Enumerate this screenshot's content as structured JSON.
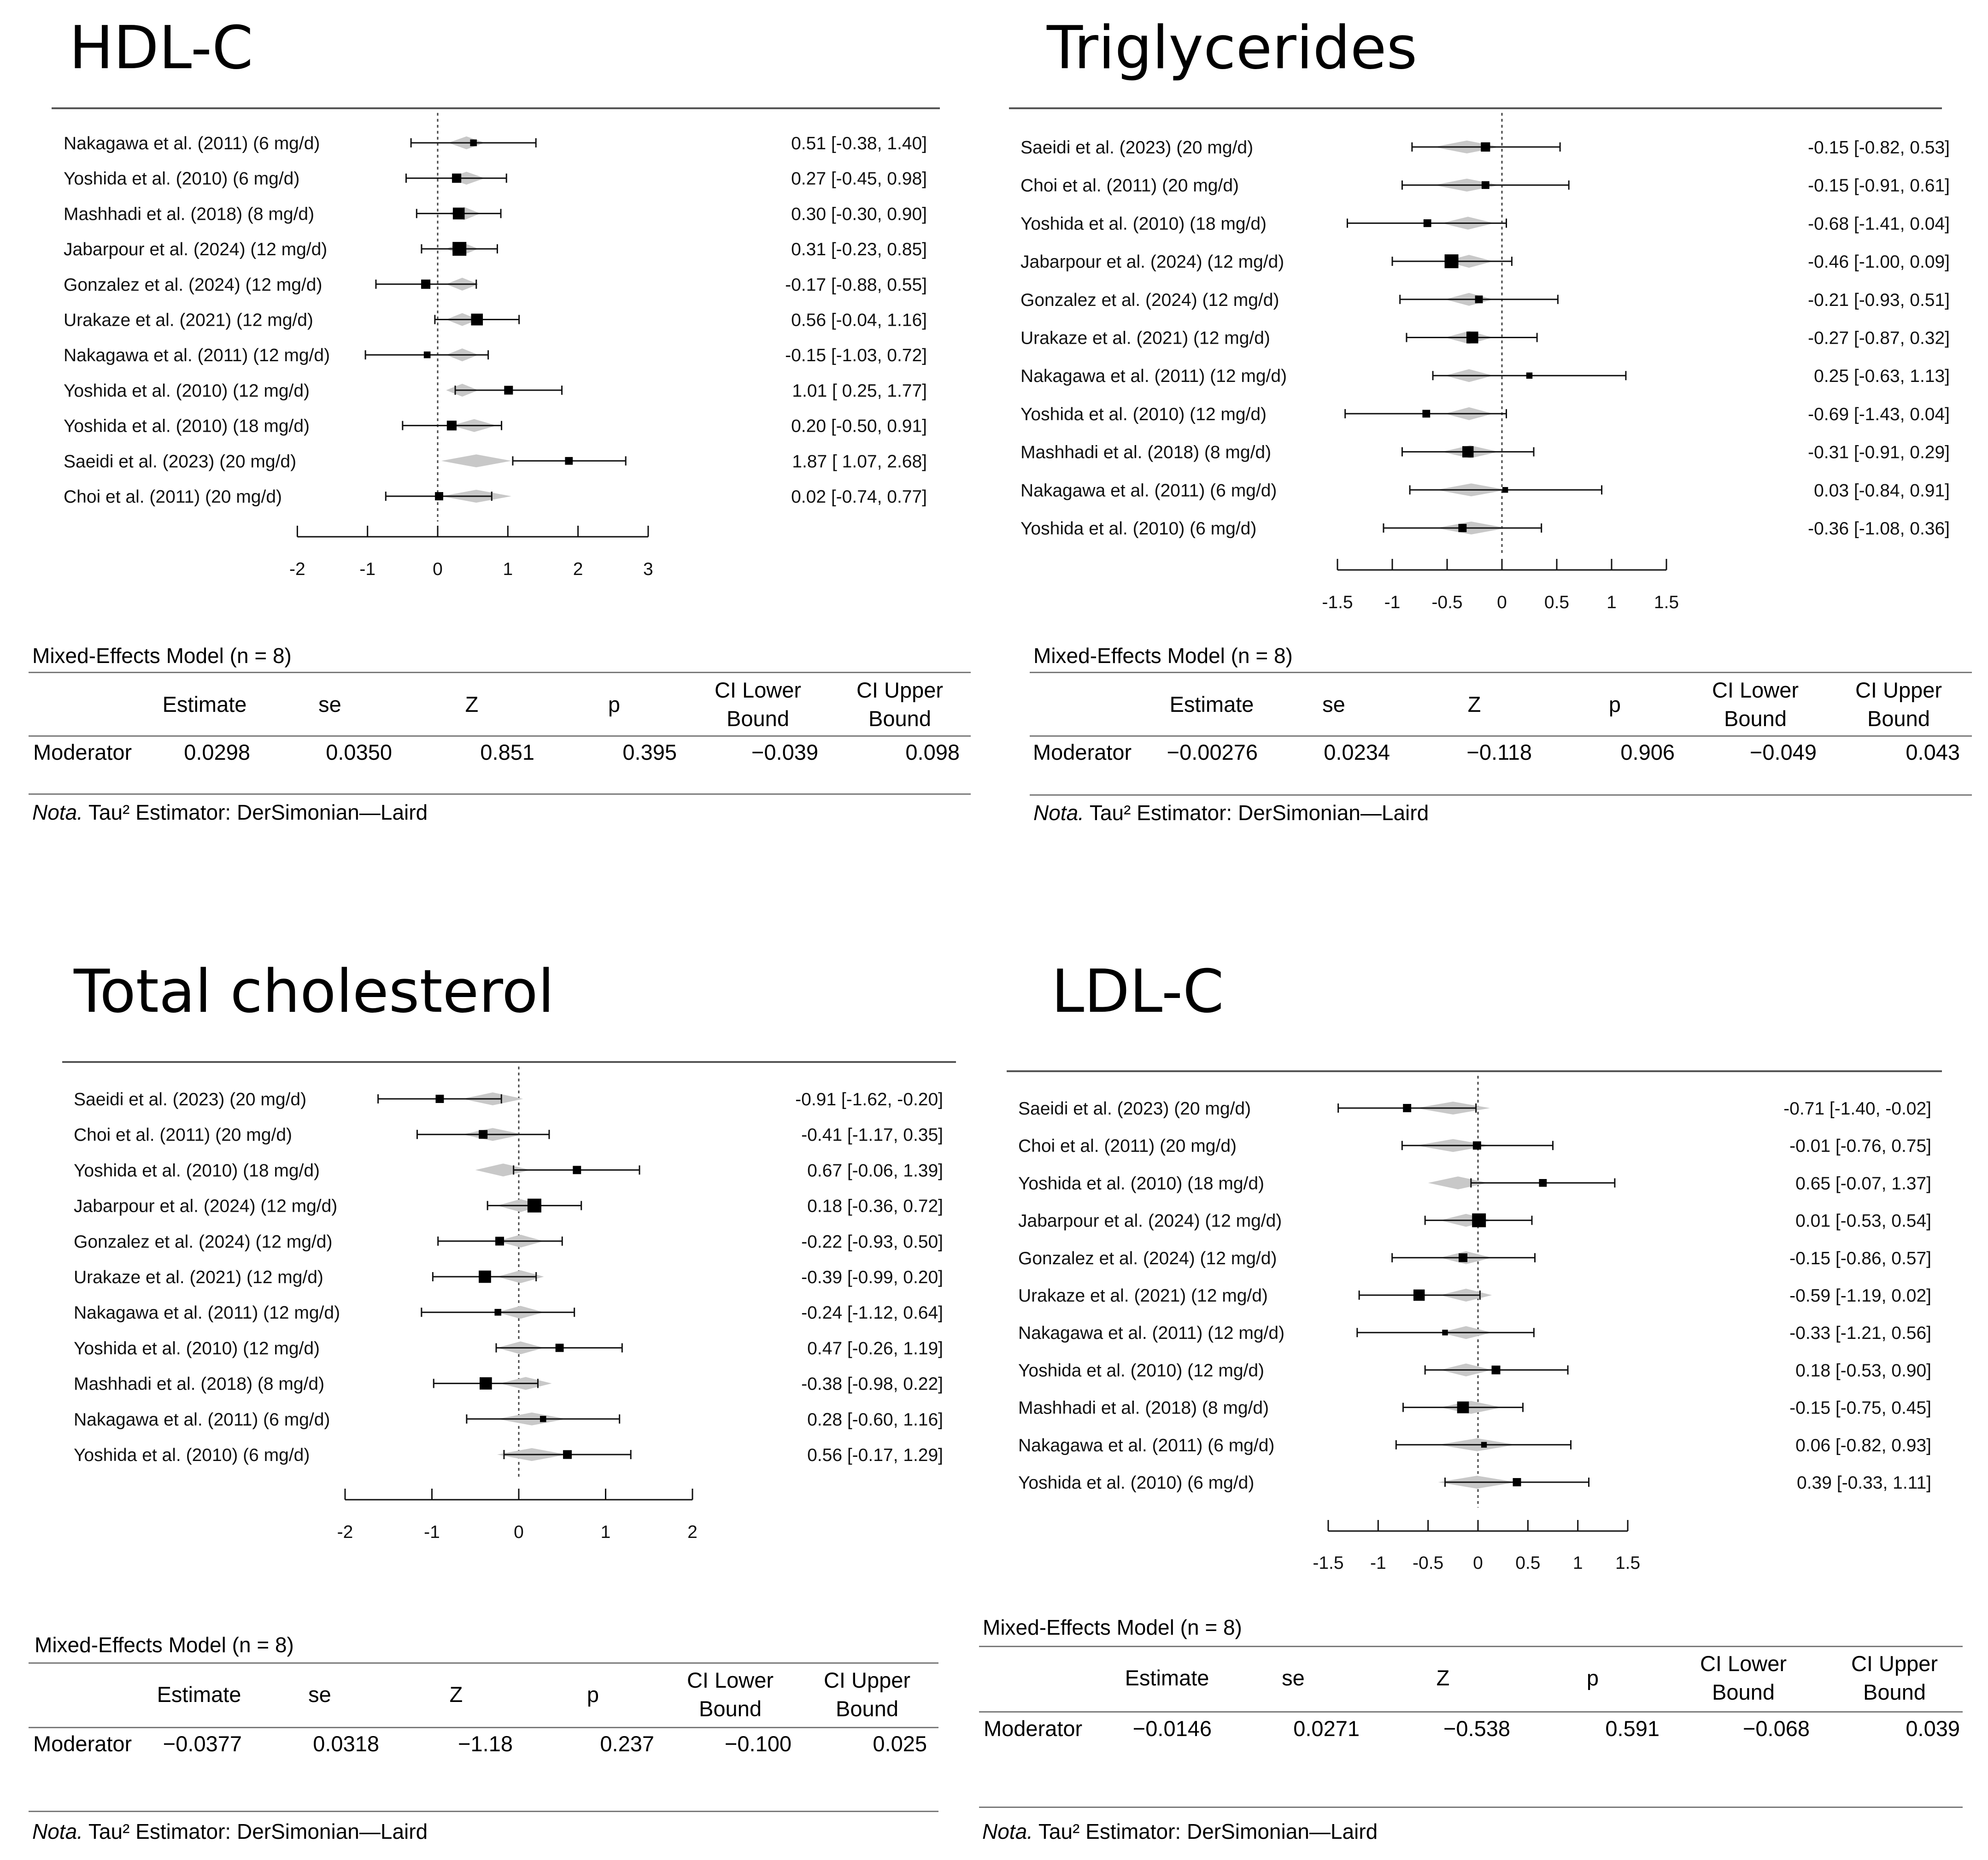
{
  "charts": [
    {
      "title": "HDL-C",
      "studies": [
        {
          "label": "Nakagawa et al. (2011) (6 mg/d)",
          "ci_text": "0.51 [-0.38, 1.40]"
        },
        {
          "label": "Yoshida et al. (2010) (6 mg/d)",
          "ci_text": "0.27 [-0.45, 0.98]"
        },
        {
          "label": "Mashhadi et al. (2018) (8 mg/d)",
          "ci_text": "0.30 [-0.30, 0.90]"
        },
        {
          "label": "Jabarpour et al. (2024) (12 mg/d)",
          "ci_text": "0.31 [-0.23, 0.85]"
        },
        {
          "label": "Gonzalez et al. (2024) (12 mg/d)",
          "ci_text": "-0.17 [-0.88, 0.55]"
        },
        {
          "label": "Urakaze et al. (2021) (12 mg/d)",
          "ci_text": "0.56 [-0.04, 1.16]"
        },
        {
          "label": "Nakagawa et al. (2011) (12 mg/d)",
          "ci_text": "-0.15 [-1.03, 0.72]"
        },
        {
          "label": "Yoshida et al. (2010) (12 mg/d)",
          "ci_text": "1.01 [ 0.25, 1.77]"
        },
        {
          "label": "Yoshida et al. (2010) (18 mg/d)",
          "ci_text": "0.20 [-0.50, 0.91]"
        },
        {
          "label": "Saeidi et al. (2023) (20 mg/d)",
          "ci_text": "1.87 [ 1.07, 2.68]"
        },
        {
          "label": "Choi et al. (2011) (20 mg/d)",
          "ci_text": "0.02 [-0.74, 0.77]"
        }
      ],
      "axis_ticks": [
        "-2",
        "-1",
        "0",
        "1",
        "2",
        "3"
      ],
      "model": {
        "title": "Mixed-Effects Model (n = 8)",
        "headers": {
          "estimate": "Estimate",
          "se": "se",
          "z": "Z",
          "p": "p",
          "ci_lower_1": "CI Lower",
          "ci_lower_2": "Bound",
          "ci_upper_1": "CI Upper",
          "ci_upper_2": "Bound"
        },
        "row": {
          "label": "Moderator",
          "estimate": "0.0298",
          "se": "0.0350",
          "z": "0.851",
          "p": "0.395",
          "ci_lower": "−0.039",
          "ci_upper": "0.098"
        },
        "note_label": "Nota.",
        "note_text": "Tau² Estimator: DerSimonian—Laird"
      }
    },
    {
      "title": "Triglycerides",
      "studies": [
        {
          "label": "Saeidi et al. (2023) (20 mg/d)",
          "ci_text": "-0.15 [-0.82, 0.53]"
        },
        {
          "label": "Choi et al. (2011) (20 mg/d)",
          "ci_text": "-0.15 [-0.91, 0.61]"
        },
        {
          "label": "Yoshida et al. (2010) (18 mg/d)",
          "ci_text": "-0.68 [-1.41, 0.04]"
        },
        {
          "label": "Jabarpour et al. (2024) (12 mg/d)",
          "ci_text": "-0.46 [-1.00, 0.09]"
        },
        {
          "label": "Gonzalez et al. (2024) (12 mg/d)",
          "ci_text": "-0.21 [-0.93, 0.51]"
        },
        {
          "label": "Urakaze et al. (2021) (12 mg/d)",
          "ci_text": "-0.27 [-0.87, 0.32]"
        },
        {
          "label": "Nakagawa et al. (2011) (12 mg/d)",
          "ci_text": "0.25 [-0.63, 1.13]"
        },
        {
          "label": "Yoshida et al. (2010) (12 mg/d)",
          "ci_text": "-0.69 [-1.43, 0.04]"
        },
        {
          "label": "Mashhadi et al. (2018) (8 mg/d)",
          "ci_text": "-0.31 [-0.91, 0.29]"
        },
        {
          "label": "Nakagawa et al. (2011) (6 mg/d)",
          "ci_text": "0.03 [-0.84, 0.91]"
        },
        {
          "label": "Yoshida et al. (2010) (6 mg/d)",
          "ci_text": "-0.36 [-1.08, 0.36]"
        }
      ],
      "axis_ticks": [
        "-1.5",
        "-1",
        "-0.5",
        "0",
        "0.5",
        "1",
        "1.5"
      ],
      "model": {
        "title": "Mixed-Effects Model (n = 8)",
        "headers": {
          "estimate": "Estimate",
          "se": "se",
          "z": "Z",
          "p": "p",
          "ci_lower_1": "CI Lower",
          "ci_lower_2": "Bound",
          "ci_upper_1": "CI Upper",
          "ci_upper_2": "Bound"
        },
        "row": {
          "label": "Moderator",
          "estimate": "−0.00276",
          "se": "0.0234",
          "z": "−0.118",
          "p": "0.906",
          "ci_lower": "−0.049",
          "ci_upper": "0.043"
        },
        "note_label": "Nota.",
        "note_text": "Tau² Estimator: DerSimonian—Laird"
      }
    },
    {
      "title": "Total cholesterol",
      "studies": [
        {
          "label": "Saeidi et al. (2023) (20 mg/d)",
          "ci_text": "-0.91 [-1.62, -0.20]"
        },
        {
          "label": "Choi et al. (2011) (20 mg/d)",
          "ci_text": "-0.41 [-1.17, 0.35]"
        },
        {
          "label": "Yoshida et al. (2010) (18 mg/d)",
          "ci_text": "0.67 [-0.06, 1.39]"
        },
        {
          "label": "Jabarpour et al. (2024) (12 mg/d)",
          "ci_text": "0.18 [-0.36, 0.72]"
        },
        {
          "label": "Gonzalez et al. (2024) (12 mg/d)",
          "ci_text": "-0.22 [-0.93, 0.50]"
        },
        {
          "label": "Urakaze et al. (2021) (12 mg/d)",
          "ci_text": "-0.39 [-0.99, 0.20]"
        },
        {
          "label": "Nakagawa et al. (2011) (12 mg/d)",
          "ci_text": "-0.24 [-1.12, 0.64]"
        },
        {
          "label": "Yoshida et al. (2010) (12 mg/d)",
          "ci_text": "0.47 [-0.26, 1.19]"
        },
        {
          "label": "Mashhadi et al. (2018) (8 mg/d)",
          "ci_text": "-0.38 [-0.98, 0.22]"
        },
        {
          "label": "Nakagawa et al. (2011) (6 mg/d)",
          "ci_text": "0.28 [-0.60, 1.16]"
        },
        {
          "label": "Yoshida et al. (2010) (6 mg/d)",
          "ci_text": "0.56 [-0.17, 1.29]"
        }
      ],
      "axis_ticks": [
        "-2",
        "-1",
        "0",
        "1",
        "2"
      ],
      "model": {
        "title": "Mixed-Effects Model (n = 8)",
        "headers": {
          "estimate": "Estimate",
          "se": "se",
          "z": "Z",
          "p": "p",
          "ci_lower_1": "CI Lower",
          "ci_lower_2": "Bound",
          "ci_upper_1": "CI Upper",
          "ci_upper_2": "Bound"
        },
        "row": {
          "label": "Moderator",
          "estimate": "−0.0377",
          "se": "0.0318",
          "z": "−1.18",
          "p": "0.237",
          "ci_lower": "−0.100",
          "ci_upper": "0.025"
        },
        "note_label": "Nota.",
        "note_text": "Tau² Estimator: DerSimonian—Laird"
      }
    },
    {
      "title": "LDL-C",
      "studies": [
        {
          "label": "Saeidi et al. (2023) (20 mg/d)",
          "ci_text": "-0.71 [-1.40, -0.02]"
        },
        {
          "label": "Choi et al. (2011) (20 mg/d)",
          "ci_text": "-0.01 [-0.76, 0.75]"
        },
        {
          "label": "Yoshida et al. (2010) (18 mg/d)",
          "ci_text": "0.65 [-0.07, 1.37]"
        },
        {
          "label": "Jabarpour et al. (2024) (12 mg/d)",
          "ci_text": "0.01 [-0.53, 0.54]"
        },
        {
          "label": "Gonzalez et al. (2024) (12 mg/d)",
          "ci_text": "-0.15 [-0.86, 0.57]"
        },
        {
          "label": "Urakaze et al. (2021) (12 mg/d)",
          "ci_text": "-0.59 [-1.19, 0.02]"
        },
        {
          "label": "Nakagawa et al. (2011) (12 mg/d)",
          "ci_text": "-0.33 [-1.21, 0.56]"
        },
        {
          "label": "Yoshida et al. (2010) (12 mg/d)",
          "ci_text": "0.18 [-0.53, 0.90]"
        },
        {
          "label": "Mashhadi et al. (2018) (8 mg/d)",
          "ci_text": "-0.15 [-0.75, 0.45]"
        },
        {
          "label": "Nakagawa et al. (2011) (6 mg/d)",
          "ci_text": "0.06 [-0.82, 0.93]"
        },
        {
          "label": "Yoshida et al. (2010) (6 mg/d)",
          "ci_text": "0.39 [-0.33, 1.11]"
        }
      ],
      "axis_ticks": [
        "-1.5",
        "-1",
        "-0.5",
        "0",
        "0.5",
        "1",
        "1.5"
      ],
      "model": {
        "title": "Mixed-Effects Model (n = 8)",
        "headers": {
          "estimate": "Estimate",
          "se": "se",
          "z": "Z",
          "p": "p",
          "ci_lower_1": "CI Lower",
          "ci_lower_2": "Bound",
          "ci_upper_1": "CI Upper",
          "ci_upper_2": "Bound"
        },
        "row": {
          "label": "Moderator",
          "estimate": "−0.0146",
          "se": "0.0271",
          "z": "−0.538",
          "p": "0.591",
          "ci_lower": "−0.068",
          "ci_upper": "0.039"
        },
        "note_label": "Nota.",
        "note_text": "Tau² Estimator: DerSimonian—Laird"
      }
    }
  ],
  "chart_data": [
    {
      "type": "forest",
      "title": "HDL-C",
      "xlim": [
        -2,
        3
      ],
      "xticks": [
        -2,
        -1,
        0,
        1,
        2,
        3
      ],
      "reference_line": 0,
      "studies": [
        {
          "estimate": 0.51,
          "ci_lower": -0.38,
          "ci_upper": 1.4,
          "weight": 0.3
        },
        {
          "estimate": 0.27,
          "ci_lower": -0.45,
          "ci_upper": 0.98,
          "weight": 0.55
        },
        {
          "estimate": 0.3,
          "ci_lower": -0.3,
          "ci_upper": 0.9,
          "weight": 0.8
        },
        {
          "estimate": 0.31,
          "ci_lower": -0.23,
          "ci_upper": 0.85,
          "weight": 1.0
        },
        {
          "estimate": -0.17,
          "ci_lower": -0.88,
          "ci_upper": 0.55,
          "weight": 0.55
        },
        {
          "estimate": 0.56,
          "ci_lower": -0.04,
          "ci_upper": 1.16,
          "weight": 0.8
        },
        {
          "estimate": -0.15,
          "ci_lower": -1.03,
          "ci_upper": 0.72,
          "weight": 0.3
        },
        {
          "estimate": 1.01,
          "ci_lower": 0.25,
          "ci_upper": 1.77,
          "weight": 0.5
        },
        {
          "estimate": 0.2,
          "ci_lower": -0.5,
          "ci_upper": 0.91,
          "weight": 0.6
        },
        {
          "estimate": 1.87,
          "ci_lower": 1.07,
          "ci_upper": 2.68,
          "weight": 0.4
        },
        {
          "estimate": 0.02,
          "ci_lower": -0.74,
          "ci_upper": 0.77,
          "weight": 0.45
        }
      ],
      "predicted": [
        {
          "estimate": 0.41,
          "lower": 0.15,
          "upper": 0.67
        },
        {
          "estimate": 0.41,
          "lower": 0.15,
          "upper": 0.67
        },
        {
          "estimate": 0.38,
          "lower": 0.15,
          "upper": 0.61
        },
        {
          "estimate": 0.35,
          "lower": 0.12,
          "upper": 0.58
        },
        {
          "estimate": 0.35,
          "lower": 0.12,
          "upper": 0.58
        },
        {
          "estimate": 0.35,
          "lower": 0.12,
          "upper": 0.58
        },
        {
          "estimate": 0.35,
          "lower": 0.12,
          "upper": 0.58
        },
        {
          "estimate": 0.35,
          "lower": 0.12,
          "upper": 0.58
        },
        {
          "estimate": 0.52,
          "lower": 0.2,
          "upper": 0.84
        },
        {
          "estimate": 0.55,
          "lower": 0.05,
          "upper": 1.05
        },
        {
          "estimate": 0.55,
          "lower": 0.05,
          "upper": 1.05
        }
      ]
    },
    {
      "type": "forest",
      "title": "Triglycerides",
      "xlim": [
        -1.5,
        1.5
      ],
      "xticks": [
        -1.5,
        -1,
        -0.5,
        0,
        0.5,
        1,
        1.5
      ],
      "reference_line": 0,
      "studies": [
        {
          "estimate": -0.15,
          "ci_lower": -0.82,
          "ci_upper": 0.53,
          "weight": 0.55
        },
        {
          "estimate": -0.15,
          "ci_lower": -0.91,
          "ci_upper": 0.61,
          "weight": 0.4
        },
        {
          "estimate": -0.68,
          "ci_lower": -1.41,
          "ci_upper": 0.04,
          "weight": 0.4
        },
        {
          "estimate": -0.46,
          "ci_lower": -1.0,
          "ci_upper": 0.09,
          "weight": 1.0
        },
        {
          "estimate": -0.21,
          "ci_lower": -0.93,
          "ci_upper": 0.51,
          "weight": 0.4
        },
        {
          "estimate": -0.27,
          "ci_lower": -0.87,
          "ci_upper": 0.32,
          "weight": 0.8
        },
        {
          "estimate": 0.25,
          "ci_lower": -0.63,
          "ci_upper": 1.13,
          "weight": 0.25
        },
        {
          "estimate": -0.69,
          "ci_lower": -1.43,
          "ci_upper": 0.04,
          "weight": 0.4
        },
        {
          "estimate": -0.31,
          "ci_lower": -0.91,
          "ci_upper": 0.29,
          "weight": 0.75
        },
        {
          "estimate": 0.03,
          "ci_lower": -0.84,
          "ci_upper": 0.91,
          "weight": 0.2
        },
        {
          "estimate": -0.36,
          "ci_lower": -1.08,
          "ci_upper": 0.36,
          "weight": 0.45
        }
      ],
      "predicted": [
        {
          "estimate": -0.32,
          "lower": -0.62,
          "upper": -0.02
        },
        {
          "estimate": -0.32,
          "lower": -0.62,
          "upper": -0.02
        },
        {
          "estimate": -0.31,
          "lower": -0.55,
          "upper": -0.07
        },
        {
          "estimate": -0.3,
          "lower": -0.52,
          "upper": -0.08
        },
        {
          "estimate": -0.3,
          "lower": -0.52,
          "upper": -0.08
        },
        {
          "estimate": -0.3,
          "lower": -0.52,
          "upper": -0.08
        },
        {
          "estimate": -0.3,
          "lower": -0.52,
          "upper": -0.08
        },
        {
          "estimate": -0.3,
          "lower": -0.52,
          "upper": -0.08
        },
        {
          "estimate": -0.29,
          "lower": -0.55,
          "upper": -0.03
        },
        {
          "estimate": -0.28,
          "lower": -0.6,
          "upper": 0.04
        },
        {
          "estimate": -0.28,
          "lower": -0.6,
          "upper": 0.04
        }
      ]
    },
    {
      "type": "forest",
      "title": "Total cholesterol",
      "xlim": [
        -2,
        2
      ],
      "xticks": [
        -2,
        -1,
        0,
        1,
        2
      ],
      "reference_line": 0,
      "studies": [
        {
          "estimate": -0.91,
          "ci_lower": -1.62,
          "ci_upper": -0.2,
          "weight": 0.45
        },
        {
          "estimate": -0.41,
          "ci_lower": -1.17,
          "ci_upper": 0.35,
          "weight": 0.5
        },
        {
          "estimate": 0.67,
          "ci_lower": -0.06,
          "ci_upper": 1.39,
          "weight": 0.45
        },
        {
          "estimate": 0.18,
          "ci_lower": -0.36,
          "ci_upper": 0.72,
          "weight": 1.0
        },
        {
          "estimate": -0.22,
          "ci_lower": -0.93,
          "ci_upper": 0.5,
          "weight": 0.5
        },
        {
          "estimate": -0.39,
          "ci_lower": -0.99,
          "ci_upper": 0.2,
          "weight": 0.85
        },
        {
          "estimate": -0.24,
          "ci_lower": -1.12,
          "ci_upper": 0.64,
          "weight": 0.3
        },
        {
          "estimate": 0.47,
          "ci_lower": -0.26,
          "ci_upper": 1.19,
          "weight": 0.45
        },
        {
          "estimate": -0.38,
          "ci_lower": -0.98,
          "ci_upper": 0.22,
          "weight": 0.85
        },
        {
          "estimate": 0.28,
          "ci_lower": -0.6,
          "ci_upper": 1.16,
          "weight": 0.25
        },
        {
          "estimate": 0.56,
          "ci_lower": -0.17,
          "ci_upper": 1.29,
          "weight": 0.5
        }
      ],
      "predicted": [
        {
          "estimate": -0.3,
          "lower": -0.65,
          "upper": 0.05
        },
        {
          "estimate": -0.3,
          "lower": -0.65,
          "upper": 0.05
        },
        {
          "estimate": -0.18,
          "lower": -0.5,
          "upper": 0.14
        },
        {
          "estimate": 0.02,
          "lower": -0.25,
          "upper": 0.29
        },
        {
          "estimate": 0.02,
          "lower": -0.25,
          "upper": 0.29
        },
        {
          "estimate": 0.02,
          "lower": -0.25,
          "upper": 0.29
        },
        {
          "estimate": 0.02,
          "lower": -0.25,
          "upper": 0.29
        },
        {
          "estimate": 0.02,
          "lower": -0.25,
          "upper": 0.29
        },
        {
          "estimate": 0.08,
          "lower": -0.22,
          "upper": 0.38
        },
        {
          "estimate": 0.15,
          "lower": -0.25,
          "upper": 0.55
        },
        {
          "estimate": 0.15,
          "lower": -0.25,
          "upper": 0.55
        }
      ]
    },
    {
      "type": "forest",
      "title": "LDL-C",
      "xlim": [
        -1.5,
        1.5
      ],
      "xticks": [
        -1.5,
        -1,
        -0.5,
        0,
        0.5,
        1,
        1.5
      ],
      "reference_line": 0,
      "studies": [
        {
          "estimate": -0.71,
          "ci_lower": -1.4,
          "ci_upper": -0.02,
          "weight": 0.45
        },
        {
          "estimate": -0.01,
          "ci_lower": -0.76,
          "ci_upper": 0.75,
          "weight": 0.45
        },
        {
          "estimate": 0.65,
          "ci_lower": -0.07,
          "ci_upper": 1.37,
          "weight": 0.4
        },
        {
          "estimate": 0.01,
          "ci_lower": -0.53,
          "ci_upper": 0.54,
          "weight": 1.0
        },
        {
          "estimate": -0.15,
          "ci_lower": -0.86,
          "ci_upper": 0.57,
          "weight": 0.5
        },
        {
          "estimate": -0.59,
          "ci_lower": -1.19,
          "ci_upper": 0.02,
          "weight": 0.75
        },
        {
          "estimate": -0.33,
          "ci_lower": -1.21,
          "ci_upper": 0.56,
          "weight": 0.2
        },
        {
          "estimate": 0.18,
          "ci_lower": -0.53,
          "ci_upper": 0.9,
          "weight": 0.5
        },
        {
          "estimate": -0.15,
          "ci_lower": -0.75,
          "ci_upper": 0.45,
          "weight": 0.8
        },
        {
          "estimate": 0.06,
          "ci_lower": -0.82,
          "ci_upper": 0.93,
          "weight": 0.2
        },
        {
          "estimate": 0.39,
          "ci_lower": -0.33,
          "ci_upper": 1.11,
          "weight": 0.45
        }
      ],
      "predicted": [
        {
          "estimate": -0.25,
          "lower": -0.62,
          "upper": 0.12
        },
        {
          "estimate": -0.25,
          "lower": -0.62,
          "upper": 0.12
        },
        {
          "estimate": -0.2,
          "lower": -0.5,
          "upper": 0.1
        },
        {
          "estimate": -0.12,
          "lower": -0.38,
          "upper": 0.14
        },
        {
          "estimate": -0.12,
          "lower": -0.38,
          "upper": 0.14
        },
        {
          "estimate": -0.12,
          "lower": -0.38,
          "upper": 0.14
        },
        {
          "estimate": -0.12,
          "lower": -0.38,
          "upper": 0.14
        },
        {
          "estimate": -0.12,
          "lower": -0.38,
          "upper": 0.14
        },
        {
          "estimate": -0.07,
          "lower": -0.38,
          "upper": 0.24
        },
        {
          "estimate": -0.01,
          "lower": -0.4,
          "upper": 0.38
        },
        {
          "estimate": -0.01,
          "lower": -0.4,
          "upper": 0.38
        }
      ]
    }
  ]
}
